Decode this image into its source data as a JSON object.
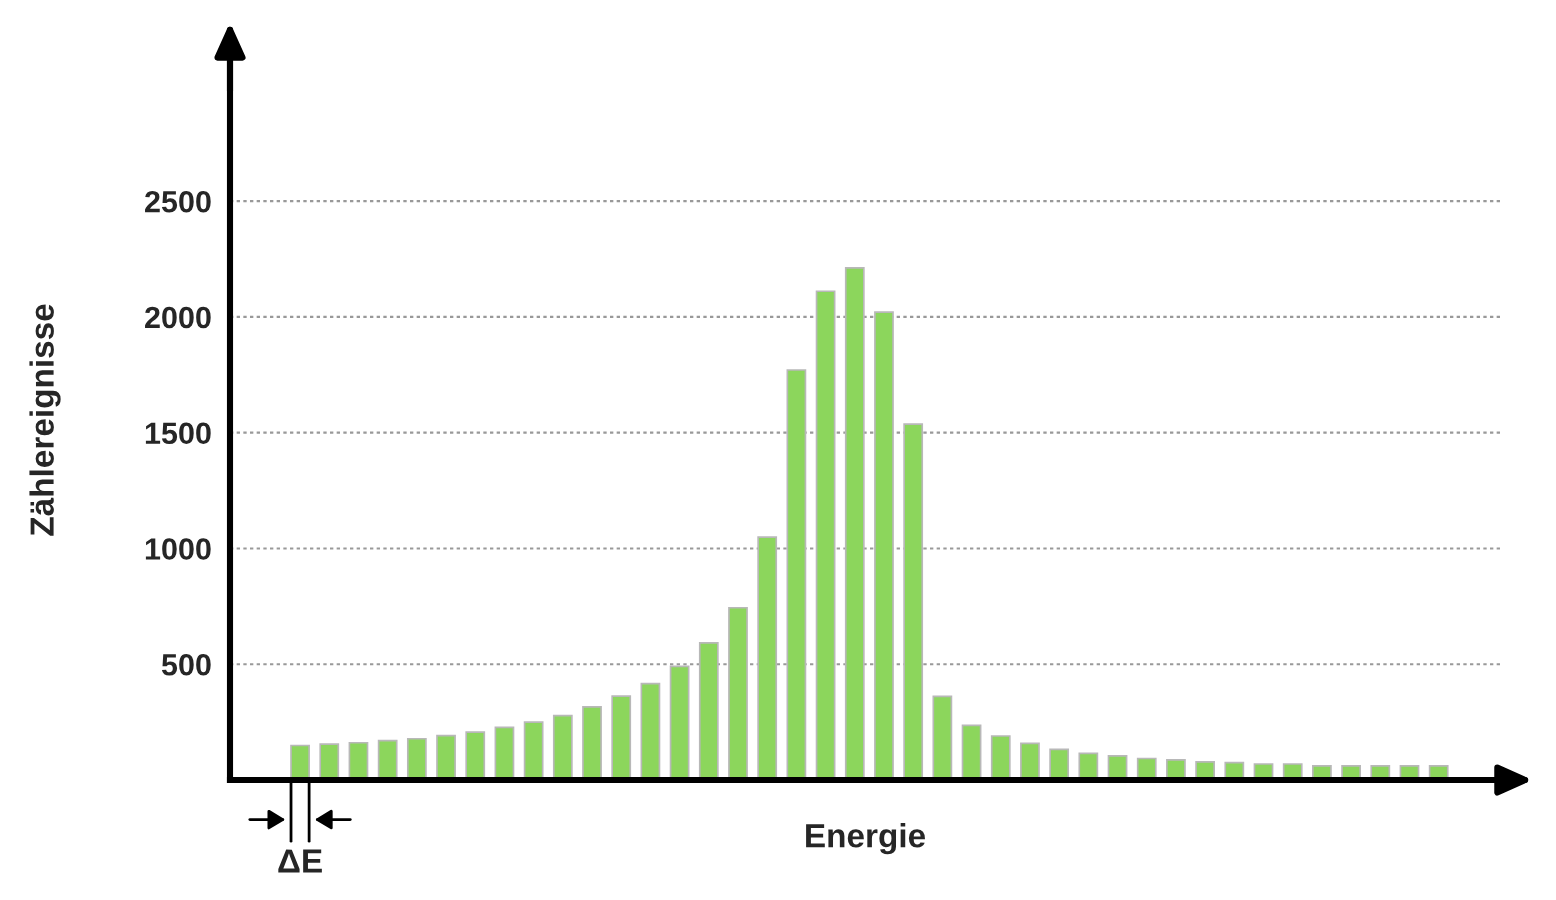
{
  "chart_data": {
    "type": "bar",
    "xlabel": "Energie",
    "ylabel": "Zählereignisse",
    "categories": [
      null,
      null,
      null,
      null,
      null,
      null,
      null,
      null,
      null,
      null,
      null,
      null,
      null,
      null,
      null,
      null,
      null,
      null,
      null,
      null,
      null,
      null,
      null,
      null,
      null,
      null,
      null,
      null,
      null,
      null,
      null,
      null,
      null,
      null,
      null,
      null,
      null,
      null,
      null,
      null
    ],
    "values": [
      149,
      155,
      161,
      170,
      178,
      192,
      207,
      227,
      250,
      278,
      316,
      362,
      416,
      491,
      592,
      744,
      1049,
      1771,
      2111,
      2212,
      2021,
      1537,
      361,
      236,
      190,
      158,
      132,
      115,
      104,
      93,
      87,
      78,
      75,
      69,
      69,
      61,
      61,
      61,
      61,
      61
    ],
    "color": "#8cd65c",
    "ylim": [
      0,
      3110
    ],
    "yticks": [
      500,
      1000,
      1500,
      2000,
      2500
    ],
    "grid": "y",
    "legend": false,
    "tick_labels": "y",
    "annotations": [
      "ΔE"
    ]
  }
}
